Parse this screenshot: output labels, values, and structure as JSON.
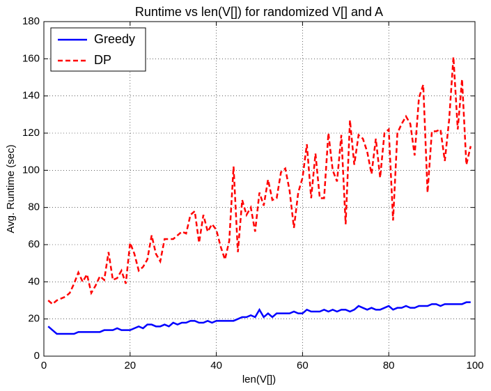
{
  "chart_data": {
    "type": "line",
    "title": "Runtime vs len(V[]) for randomized V[] and A",
    "xlabel": "len(V[])",
    "ylabel": "Avg. Runtime (sec)",
    "x": [
      1,
      2,
      3,
      4,
      5,
      6,
      7,
      8,
      9,
      10,
      11,
      12,
      13,
      14,
      15,
      16,
      17,
      18,
      19,
      20,
      21,
      22,
      23,
      24,
      25,
      26,
      27,
      28,
      29,
      30,
      31,
      32,
      33,
      34,
      35,
      36,
      37,
      38,
      39,
      40,
      41,
      42,
      43,
      44,
      45,
      46,
      47,
      48,
      49,
      50,
      51,
      52,
      53,
      54,
      55,
      56,
      57,
      58,
      59,
      60,
      61,
      62,
      63,
      64,
      65,
      66,
      67,
      68,
      69,
      70,
      71,
      72,
      73,
      74,
      75,
      76,
      77,
      78,
      79,
      80,
      81,
      82,
      83,
      84,
      85,
      86,
      87,
      88,
      89,
      90,
      91,
      92,
      93,
      94,
      95,
      96,
      97,
      98,
      99
    ],
    "series": [
      {
        "name": "Greedy",
        "color": "#0000ff",
        "style": "solid",
        "values": [
          16,
          14,
          12,
          12,
          12,
          12,
          12,
          13,
          13,
          13,
          13,
          13,
          13,
          14,
          14,
          14,
          15,
          14,
          14,
          14,
          15,
          16,
          15,
          17,
          17,
          16,
          16,
          17,
          16,
          18,
          17,
          18,
          18,
          19,
          19,
          18,
          18,
          19,
          18,
          19,
          19,
          19,
          19,
          19,
          20,
          21,
          21,
          22,
          21,
          25,
          21,
          23,
          21,
          23,
          23,
          23,
          23,
          24,
          23,
          23,
          25,
          24,
          24,
          24,
          25,
          24,
          25,
          24,
          25,
          25,
          24,
          25,
          27,
          26,
          25,
          26,
          25,
          25,
          26,
          27,
          25,
          26,
          26,
          27,
          26,
          26,
          27,
          27,
          27,
          28,
          28,
          27,
          28,
          28,
          28,
          28,
          28,
          29,
          29
        ]
      },
      {
        "name": "DP",
        "color": "#ff0000",
        "style": "dashed",
        "values": [
          30,
          28,
          30,
          31,
          32,
          34,
          39,
          45,
          40,
          44,
          34,
          38,
          43,
          41,
          56,
          41,
          42,
          46,
          39,
          61,
          55,
          46,
          48,
          52,
          65,
          55,
          51,
          63,
          63,
          63,
          65,
          67,
          66,
          76,
          78,
          61,
          76,
          67,
          71,
          68,
          59,
          52,
          62,
          102,
          56,
          84,
          76,
          80,
          67,
          88,
          81,
          95,
          84,
          85,
          99,
          101,
          89,
          69,
          88,
          96,
          114,
          85,
          109,
          85,
          85,
          120,
          100,
          94,
          119,
          71,
          127,
          103,
          119,
          117,
          110,
          98,
          117,
          96,
          120,
          122,
          73,
          120,
          125,
          129,
          125,
          108,
          139,
          146,
          88,
          121,
          121,
          122,
          105,
          127,
          161,
          122,
          149,
          103,
          113
        ]
      }
    ],
    "xlim": [
      0,
      100
    ],
    "xticks": [
      0,
      20,
      40,
      60,
      80,
      100
    ],
    "ylim": [
      0,
      180
    ],
    "yticks": [
      0,
      20,
      40,
      60,
      80,
      100,
      120,
      140,
      160,
      180
    ],
    "grid": true,
    "legend": "upper left"
  }
}
